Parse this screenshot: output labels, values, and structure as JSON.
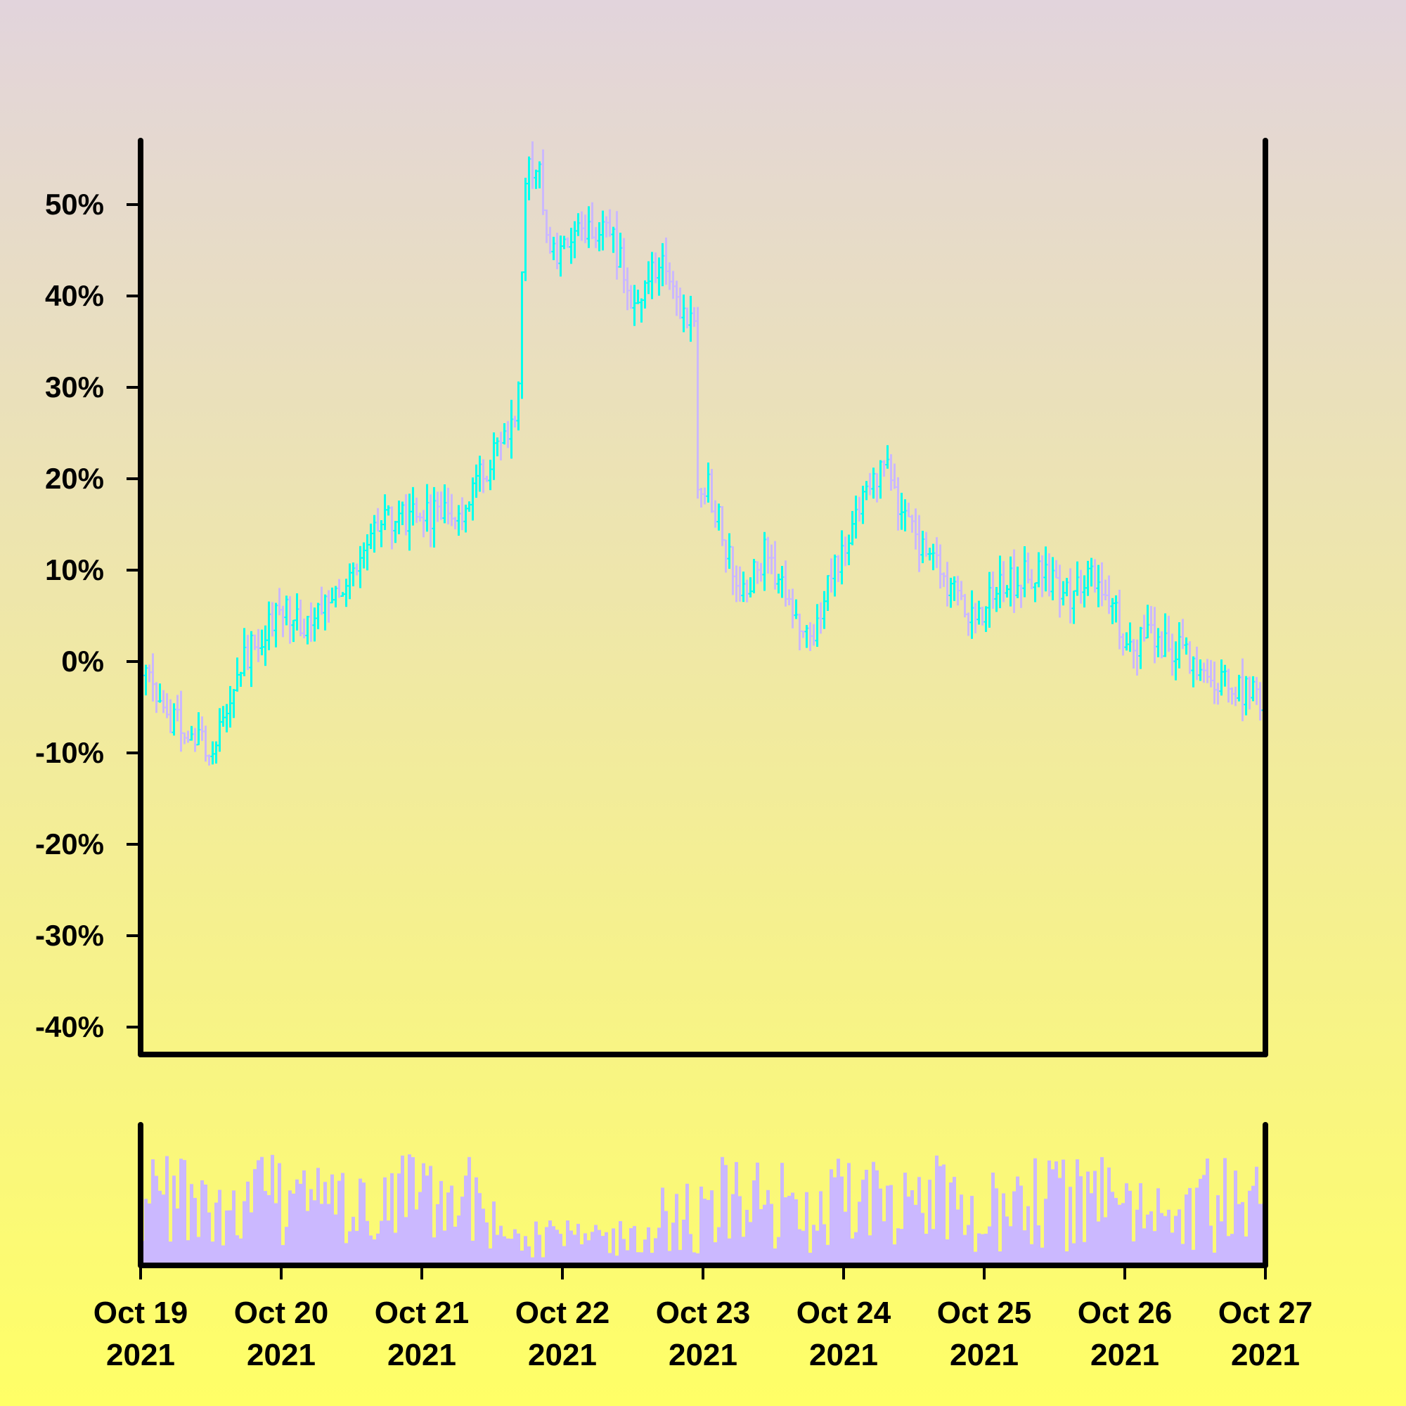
{
  "colors": {
    "background_top": "#e2d4dc",
    "background_bottom": "#ffff66",
    "axis": "#000000",
    "up": "#00ffee",
    "down": "#cbb8ff",
    "volume": "#cbb8ff"
  },
  "chart_data": {
    "type": "ohlc",
    "price_panel": {
      "ylim": [
        -43,
        57
      ],
      "y_ticks": [
        50,
        40,
        30,
        20,
        10,
        0,
        -10,
        -20,
        -30,
        -40
      ],
      "y_tick_labels": [
        "50%",
        "40%",
        "30%",
        "20%",
        "10%",
        "0%",
        "-10%",
        "-20%",
        "-30%",
        "-40%"
      ]
    },
    "x_range_days": [
      0,
      8
    ],
    "x_ticks": [
      0,
      1,
      2,
      3,
      4,
      5,
      6,
      7,
      8
    ],
    "x_tick_labels": [
      [
        "Oct 19",
        "2021"
      ],
      [
        "Oct 20",
        "2021"
      ],
      [
        "Oct 21",
        "2021"
      ],
      [
        "Oct 22",
        "2021"
      ],
      [
        "Oct 23",
        "2021"
      ],
      [
        "Oct 24",
        "2021"
      ],
      [
        "Oct 25",
        "2021"
      ],
      [
        "Oct 26",
        "2021"
      ],
      [
        "Oct 27",
        "2021"
      ]
    ],
    "bars_per_day": 40,
    "close_path_anchors": [
      [
        0,
        1
      ],
      [
        0.15,
        -5
      ],
      [
        0.3,
        -7
      ],
      [
        0.5,
        -10
      ],
      [
        0.75,
        0
      ],
      [
        1.0,
        6
      ],
      [
        1.2,
        4
      ],
      [
        1.5,
        10
      ],
      [
        1.75,
        15
      ],
      [
        2.0,
        16
      ],
      [
        2.3,
        17
      ],
      [
        2.6,
        24
      ],
      [
        2.7,
        29
      ],
      [
        2.75,
        53
      ],
      [
        2.85,
        55
      ],
      [
        2.87,
        48
      ],
      [
        3.0,
        44
      ],
      [
        3.2,
        48
      ],
      [
        3.35,
        47
      ],
      [
        3.55,
        38
      ],
      [
        3.7,
        44
      ],
      [
        3.85,
        37
      ],
      [
        3.95,
        39
      ],
      [
        3.97,
        17
      ],
      [
        4.05,
        19
      ],
      [
        4.3,
        7
      ],
      [
        4.45,
        12
      ],
      [
        4.75,
        2
      ],
      [
        5.0,
        12
      ],
      [
        5.3,
        22
      ],
      [
        5.45,
        15
      ],
      [
        5.7,
        10
      ],
      [
        5.95,
        4
      ],
      [
        6.1,
        8
      ],
      [
        6.4,
        10
      ],
      [
        6.6,
        7
      ],
      [
        6.8,
        9
      ],
      [
        6.95,
        7
      ],
      [
        7.0,
        1
      ],
      [
        7.15,
        3
      ],
      [
        7.4,
        1
      ],
      [
        7.65,
        -2
      ],
      [
        8.0,
        -4
      ]
    ],
    "volume_panel": {
      "relative_volume_pattern": "high early and mid, low Oct 21–22, high at end"
    }
  }
}
